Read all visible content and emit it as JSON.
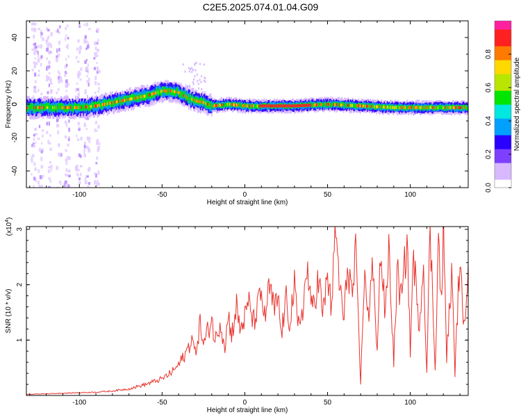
{
  "page_title": "C2E5.2025.074.01.04.G09",
  "chart_data": [
    {
      "type": "heatmap",
      "xlabel": "Height of straight line (km)",
      "ylabel": "Frequency (Hz)",
      "xlim": [
        -132,
        135
      ],
      "ylim": [
        -50,
        50
      ],
      "x_ticks": [
        -100,
        -50,
        0,
        50,
        100
      ],
      "y_ticks": [
        -40,
        -20,
        0,
        20,
        40
      ],
      "colorbar": {
        "label": "Normalized spectral amplitude",
        "range": [
          0,
          1
        ],
        "ticks": [
          0.0,
          0.2,
          0.4,
          0.6,
          0.8
        ],
        "colors": [
          "#ffffff",
          "#d8b8ff",
          "#7f3fff",
          "#2a00ff",
          "#00a0ff",
          "#00e8e0",
          "#00e600",
          "#b8e600",
          "#ffd800",
          "#ff7a00",
          "#ff2020",
          "#ff20a0"
        ]
      },
      "ridge_frequency_points": [
        {
          "x": -132,
          "y": -2
        },
        {
          "x": -120,
          "y": -2
        },
        {
          "x": -100,
          "y": -2
        },
        {
          "x": -90,
          "y": -1
        },
        {
          "x": -80,
          "y": 1
        },
        {
          "x": -70,
          "y": 3
        },
        {
          "x": -60,
          "y": 5
        },
        {
          "x": -50,
          "y": 8
        },
        {
          "x": -45,
          "y": 8
        },
        {
          "x": -40,
          "y": 7
        },
        {
          "x": -35,
          "y": 4
        },
        {
          "x": -30,
          "y": 2
        },
        {
          "x": -25,
          "y": 1
        },
        {
          "x": -20,
          "y": -1
        },
        {
          "x": -10,
          "y": 0
        },
        {
          "x": 0,
          "y": -1
        },
        {
          "x": 10,
          "y": -1
        },
        {
          "x": 30,
          "y": -1
        },
        {
          "x": 50,
          "y": 0
        },
        {
          "x": 70,
          "y": -1
        },
        {
          "x": 90,
          "y": -2
        },
        {
          "x": 110,
          "y": -2
        },
        {
          "x": 135,
          "y": -2
        }
      ]
    },
    {
      "type": "line",
      "xlabel": "Height of straight line (km)",
      "ylabel": "SNR (10 * v/v)",
      "y_multiplier": "(x10",
      "y_multiplier_exp": "4",
      "xlim": [
        -132,
        135
      ],
      "ylim": [
        0,
        3.05
      ],
      "x_ticks": [
        -100,
        -50,
        0,
        50,
        100
      ],
      "y_ticks": [
        1,
        2,
        3
      ],
      "line_color": "#e8322c",
      "series": [
        {
          "x": [
            -132,
            -120,
            -110,
            -100,
            -90,
            -80,
            -75,
            -70,
            -65,
            -60,
            -55,
            -50,
            -45,
            -40,
            -35,
            -32,
            -30,
            -27,
            -25,
            -22,
            -20,
            -18,
            -15,
            -12,
            -10,
            -8,
            -5,
            -3,
            0,
            3,
            5,
            8,
            10,
            12,
            15,
            18,
            20,
            22,
            25,
            27,
            30,
            32,
            35,
            38,
            40,
            42,
            45,
            47,
            50,
            52,
            54,
            55,
            57,
            60,
            62,
            65,
            67,
            70,
            72,
            75,
            77,
            80,
            82,
            85,
            87,
            90,
            92,
            95,
            98,
            100,
            102,
            105,
            108,
            110,
            112,
            115,
            117,
            119,
            120,
            122,
            125,
            127,
            130,
            132,
            135
          ],
          "y": [
            0.02,
            0.03,
            0.04,
            0.05,
            0.06,
            0.08,
            0.1,
            0.12,
            0.16,
            0.2,
            0.25,
            0.3,
            0.4,
            0.55,
            0.8,
            1.05,
            0.75,
            1.3,
            0.9,
            1.2,
            1.4,
            0.95,
            1.35,
            0.9,
            1.45,
            1.1,
            1.6,
            1.2,
            1.4,
            1.7,
            1.3,
            1.6,
            1.85,
            1.4,
            1.95,
            1.5,
            1.8,
            1.1,
            1.7,
            1.35,
            1.95,
            1.2,
            1.6,
            2.3,
            1.5,
            1.8,
            2.1,
            1.4,
            2.2,
            1.6,
            2.45,
            2.95,
            2.1,
            1.3,
            2.4,
            1.8,
            2.5,
            0.2,
            2.1,
            1.5,
            2.3,
            0.9,
            2.6,
            1.4,
            2.7,
            0.6,
            2.2,
            1.7,
            2.9,
            0.8,
            2.6,
            1.2,
            2.4,
            0.4,
            3.0,
            0.5,
            2.8,
            1.6,
            3.05,
            0.7,
            2.2,
            0.4,
            2.6,
            1.1,
            2.4
          ]
        }
      ]
    }
  ]
}
